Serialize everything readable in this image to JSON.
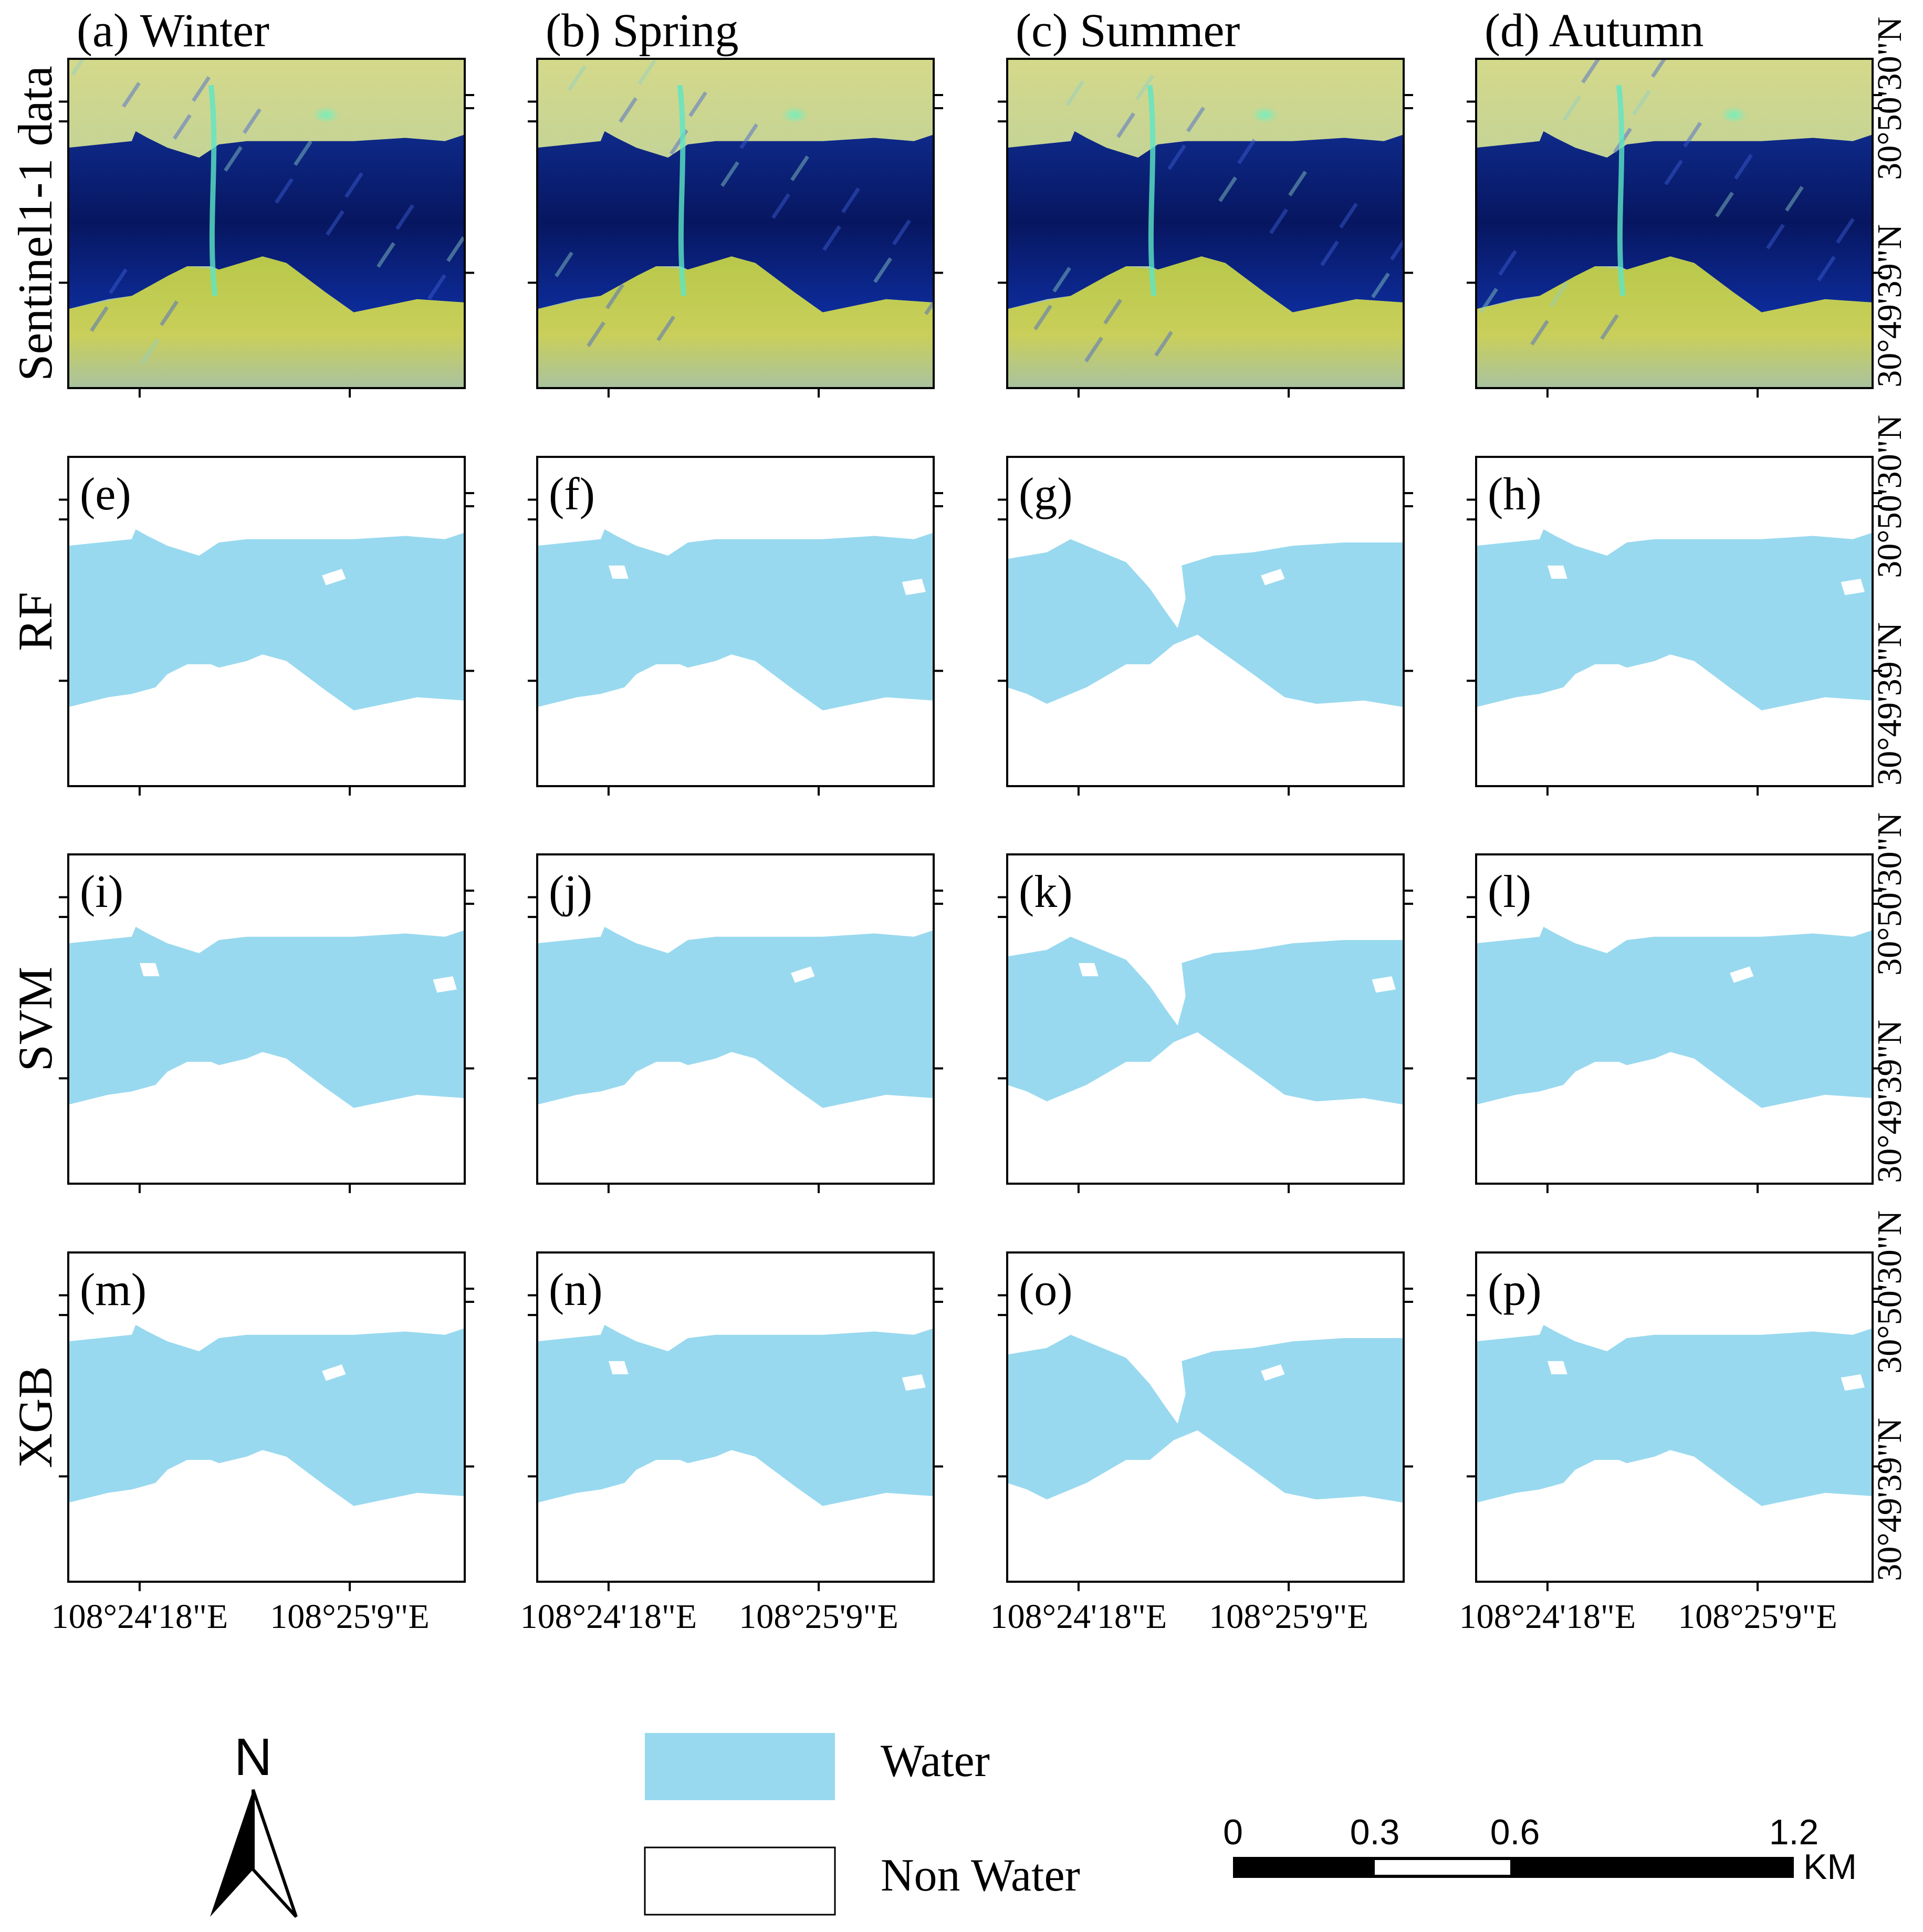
{
  "columns": [
    {
      "label": "(a) Winter"
    },
    {
      "label": "(b) Spring"
    },
    {
      "label": "(c) Summer"
    },
    {
      "label": "(d) Autumn"
    }
  ],
  "rows": [
    {
      "label": "Sentinel1-1 data",
      "type": "sar",
      "panels": []
    },
    {
      "label": "RF",
      "type": "classification",
      "panels": [
        "(e)",
        "(f)",
        "(g)",
        "(h)"
      ]
    },
    {
      "label": "SVM",
      "type": "classification",
      "panels": [
        "(i)",
        "(j)",
        "(k)",
        "(l)"
      ]
    },
    {
      "label": "XGB",
      "type": "classification",
      "panels": [
        "(m)",
        "(n)",
        "(o)",
        "(p)"
      ]
    }
  ],
  "axis": {
    "lon_labels": [
      "108°24'18\"E",
      "108°25'9\"E"
    ],
    "lat_labels": [
      "30°50'30\"N",
      "30°49'39\"N"
    ]
  },
  "legend": {
    "items": [
      {
        "label": "Water",
        "color": "#98d9ef"
      },
      {
        "label": "Non Water",
        "color": "#ffffff"
      }
    ]
  },
  "north_arrow": {
    "label": "N",
    "icon": "north-arrow-icon"
  },
  "scale_bar": {
    "ticks": [
      "0",
      "0.3",
      "0.6",
      "1.2"
    ],
    "unit": "KM"
  },
  "colors": {
    "water": "#98d9ef",
    "frame": "#000000",
    "sar_dark": "#0a1a7a",
    "sar_land": "#c9d27a"
  }
}
